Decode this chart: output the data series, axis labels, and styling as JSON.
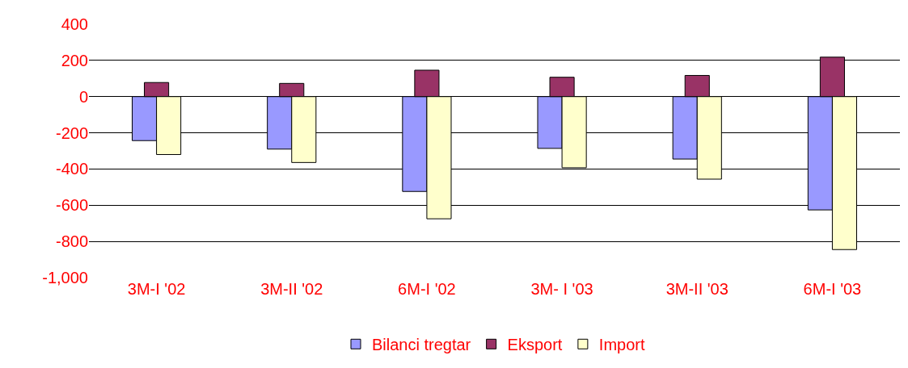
{
  "chart_data": {
    "type": "bar",
    "categories": [
      "3M-I '02",
      "3M-II '02",
      "6M-I '02",
      "3M- I '03",
      "3M-II '03",
      "6M-I '03"
    ],
    "series": [
      {
        "name": "Bilanci tregtar",
        "color": "#9999ff",
        "values": [
          -243,
          -290,
          -524,
          -286,
          -345,
          -626
        ]
      },
      {
        "name": "Eksport",
        "color": "#993366",
        "values": [
          78,
          73,
          146,
          107,
          117,
          218
        ]
      },
      {
        "name": "Import",
        "color": "#ffffcc",
        "values": [
          -320,
          -364,
          -675,
          -393,
          -456,
          -845
        ]
      }
    ],
    "ylim": [
      -1000,
      400
    ],
    "yticks": [
      {
        "value": -1000,
        "label": "-1,000"
      },
      -800,
      -600,
      -400,
      -200,
      0,
      200,
      400
    ],
    "grid": "y",
    "legend": "bottom"
  }
}
